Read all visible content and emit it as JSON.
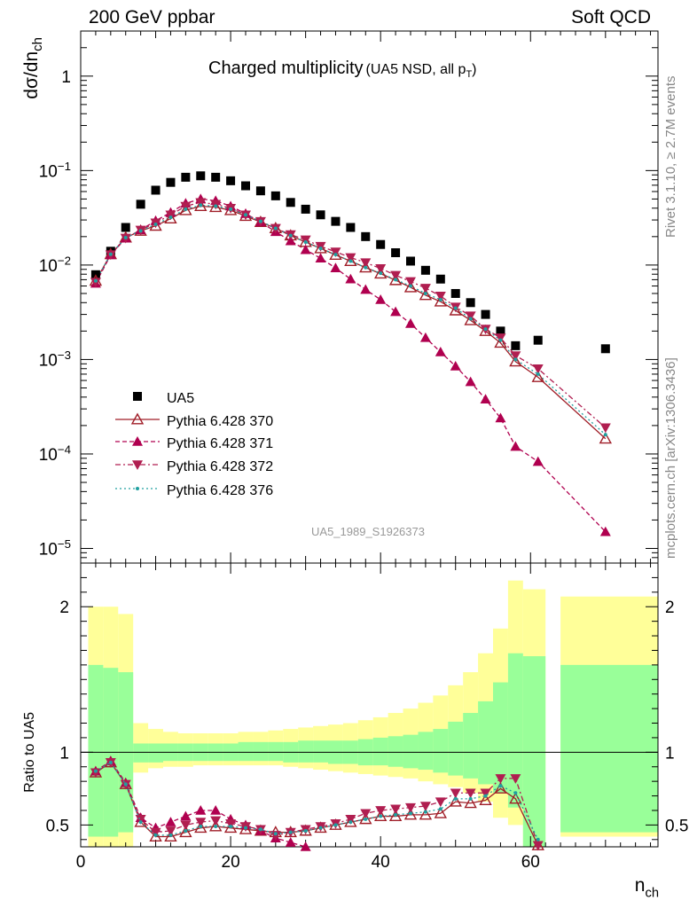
{
  "header": {
    "left": "200 GeV ppbar",
    "right": "Soft QCD"
  },
  "side": {
    "rivet": "Rivet 3.1.10, ≥ 2.7M events",
    "mcplots": "mcplots.cern.ch [arXiv:1306.3436]"
  },
  "chart_data": [
    {
      "type": "scatter",
      "title": "Charged multiplicity",
      "subtitle": "(UA5 NSD, all p",
      "subtitle_sub": "T",
      "subtitle_end": ")",
      "ylabel_main": "dσ/dn",
      "ylabel_sub": "ch",
      "yscale": "log",
      "ylim": [
        7e-06,
        3
      ],
      "xlim": [
        0,
        77
      ],
      "yticks": [
        {
          "v": 1,
          "label": "1",
          "exp": ""
        },
        {
          "v": 0.1,
          "label": "10",
          "exp": "−1"
        },
        {
          "v": 0.01,
          "label": "10",
          "exp": "−2"
        },
        {
          "v": 0.001,
          "label": "10",
          "exp": "−3"
        },
        {
          "v": 0.0001,
          "label": "10",
          "exp": "−4"
        },
        {
          "v": 1e-05,
          "label": "10",
          "exp": "−5"
        }
      ],
      "watermark": "UA5_1989_S1926373",
      "legend_position": "middle-left",
      "series": [
        {
          "name": "UA5",
          "color": "#000000",
          "marker": "square",
          "x": [
            2,
            4,
            6,
            8,
            10,
            12,
            14,
            16,
            18,
            20,
            22,
            24,
            26,
            28,
            30,
            32,
            34,
            36,
            38,
            40,
            42,
            44,
            46,
            48,
            50,
            52,
            54,
            56,
            58,
            61,
            70
          ],
          "y": [
            0.0079,
            0.014,
            0.025,
            0.044,
            0.062,
            0.075,
            0.085,
            0.088,
            0.085,
            0.078,
            0.069,
            0.061,
            0.054,
            0.046,
            0.039,
            0.034,
            0.029,
            0.025,
            0.02,
            0.0165,
            0.0135,
            0.011,
            0.0088,
            0.0071,
            0.005,
            0.004,
            0.003,
            0.002,
            0.0014,
            0.0016,
            0.0013
          ]
        },
        {
          "name": "Pythia 6.428 370",
          "color": "#a01e28",
          "marker": "triangle-up-open",
          "dash": "",
          "x": [
            2,
            4,
            6,
            8,
            10,
            12,
            14,
            16,
            18,
            20,
            22,
            24,
            26,
            28,
            30,
            32,
            34,
            36,
            38,
            40,
            42,
            44,
            46,
            48,
            50,
            52,
            54,
            56,
            58,
            61,
            70
          ],
          "y": [
            0.0068,
            0.013,
            0.0195,
            0.023,
            0.026,
            0.031,
            0.038,
            0.042,
            0.041,
            0.038,
            0.033,
            0.0285,
            0.0245,
            0.0205,
            0.0175,
            0.015,
            0.0128,
            0.011,
            0.0094,
            0.0081,
            0.0069,
            0.0058,
            0.0048,
            0.0041,
            0.0033,
            0.0026,
            0.002,
            0.0015,
            0.00095,
            0.00065,
            0.000145
          ]
        },
        {
          "name": "Pythia 6.428 371",
          "color": "#b0004f",
          "marker": "triangle-up",
          "dash": "5,3",
          "x": [
            2,
            4,
            6,
            8,
            10,
            12,
            14,
            16,
            18,
            20,
            22,
            24,
            26,
            28,
            30,
            32,
            34,
            36,
            38,
            40,
            42,
            44,
            46,
            48,
            50,
            52,
            54,
            56,
            58,
            61,
            70
          ],
          "y": [
            0.0064,
            0.0128,
            0.0192,
            0.0235,
            0.0295,
            0.036,
            0.045,
            0.05,
            0.048,
            0.042,
            0.035,
            0.0285,
            0.0225,
            0.018,
            0.0145,
            0.0118,
            0.0093,
            0.0071,
            0.0055,
            0.0043,
            0.0032,
            0.0024,
            0.0017,
            0.0012,
            0.00085,
            0.00058,
            0.00038,
            0.00024,
            0.00012,
            8.3e-05,
            1.5e-05
          ]
        },
        {
          "name": "Pythia 6.428 372",
          "color": "#b01e50",
          "marker": "triangle-down",
          "dash": "6,3,2,3",
          "x": [
            2,
            4,
            6,
            8,
            10,
            12,
            14,
            16,
            18,
            20,
            22,
            24,
            26,
            28,
            30,
            32,
            34,
            36,
            38,
            40,
            42,
            44,
            46,
            48,
            50,
            52,
            54,
            56,
            58,
            61,
            70
          ],
          "y": [
            0.0066,
            0.0129,
            0.0193,
            0.0235,
            0.028,
            0.034,
            0.042,
            0.046,
            0.044,
            0.04,
            0.034,
            0.029,
            0.0245,
            0.021,
            0.0185,
            0.0158,
            0.0138,
            0.012,
            0.0106,
            0.0092,
            0.0078,
            0.0067,
            0.0057,
            0.0047,
            0.0036,
            0.0029,
            0.0021,
            0.0017,
            0.0011,
            0.0008,
            0.00019
          ]
        },
        {
          "name": "Pythia 6.428 376",
          "color": "#20a0a0",
          "marker": "dot",
          "dash": "2,3",
          "x": [
            2,
            4,
            6,
            8,
            10,
            12,
            14,
            16,
            18,
            20,
            22,
            24,
            26,
            28,
            30,
            32,
            34,
            36,
            38,
            40,
            42,
            44,
            46,
            48,
            50,
            52,
            54,
            56,
            58,
            61,
            70
          ],
          "y": [
            0.0068,
            0.013,
            0.0195,
            0.023,
            0.027,
            0.032,
            0.039,
            0.043,
            0.042,
            0.039,
            0.034,
            0.029,
            0.0245,
            0.0205,
            0.0175,
            0.015,
            0.0129,
            0.011,
            0.0094,
            0.0082,
            0.007,
            0.006,
            0.005,
            0.0043,
            0.0035,
            0.0027,
            0.0021,
            0.0016,
            0.001,
            0.0007,
            0.00016
          ]
        }
      ]
    },
    {
      "type": "scatter",
      "ylabel": "Ratio to UA5",
      "xlabel_main": "n",
      "xlabel_sub": "ch",
      "xlim": [
        0,
        77
      ],
      "ylim": [
        0.35,
        2.3
      ],
      "xticks": [
        0,
        20,
        40,
        60
      ],
      "yticks": [
        0.5,
        1,
        2
      ],
      "yellow_band": {
        "xl": [
          1,
          3,
          5,
          7,
          9,
          11,
          13,
          15,
          17,
          19,
          21,
          23,
          25,
          27,
          29,
          31,
          33,
          35,
          37,
          39,
          41,
          43,
          45,
          47,
          49,
          51,
          53,
          55,
          57,
          59,
          64
        ],
        "xr": [
          3,
          5,
          7,
          9,
          11,
          13,
          15,
          17,
          19,
          21,
          23,
          25,
          27,
          29,
          31,
          33,
          35,
          37,
          39,
          41,
          43,
          45,
          47,
          49,
          51,
          53,
          55,
          57,
          59,
          62,
          77
        ],
        "lo": [
          0.35,
          0.35,
          0.35,
          0.86,
          0.89,
          0.9,
          0.9,
          0.91,
          0.91,
          0.91,
          0.91,
          0.91,
          0.91,
          0.9,
          0.89,
          0.88,
          0.87,
          0.86,
          0.85,
          0.84,
          0.83,
          0.82,
          0.8,
          0.78,
          0.76,
          0.72,
          0.66,
          0.55,
          0.5,
          0.35,
          0.42
        ],
        "hi": [
          2.0,
          2.0,
          1.95,
          1.2,
          1.16,
          1.14,
          1.13,
          1.13,
          1.13,
          1.13,
          1.14,
          1.14,
          1.15,
          1.16,
          1.17,
          1.18,
          1.19,
          1.2,
          1.22,
          1.24,
          1.27,
          1.3,
          1.34,
          1.39,
          1.46,
          1.55,
          1.68,
          1.85,
          2.18,
          2.12,
          2.07
        ]
      },
      "green_band": {
        "xl": [
          1,
          3,
          5,
          7,
          9,
          11,
          13,
          15,
          17,
          19,
          21,
          23,
          25,
          27,
          29,
          31,
          33,
          35,
          37,
          39,
          41,
          43,
          45,
          47,
          49,
          51,
          53,
          55,
          57,
          59,
          64
        ],
        "xr": [
          3,
          5,
          7,
          9,
          11,
          13,
          15,
          17,
          19,
          21,
          23,
          25,
          27,
          29,
          31,
          33,
          35,
          37,
          39,
          41,
          43,
          45,
          47,
          49,
          51,
          53,
          55,
          57,
          59,
          62,
          77
        ],
        "lo": [
          0.42,
          0.42,
          0.45,
          0.93,
          0.93,
          0.94,
          0.94,
          0.94,
          0.94,
          0.94,
          0.94,
          0.94,
          0.94,
          0.93,
          0.93,
          0.93,
          0.92,
          0.92,
          0.91,
          0.91,
          0.9,
          0.89,
          0.88,
          0.86,
          0.84,
          0.82,
          0.78,
          0.72,
          0.62,
          0.35,
          0.45
        ],
        "hi": [
          1.6,
          1.58,
          1.55,
          1.06,
          1.06,
          1.06,
          1.06,
          1.06,
          1.06,
          1.06,
          1.07,
          1.07,
          1.07,
          1.07,
          1.08,
          1.08,
          1.08,
          1.08,
          1.09,
          1.1,
          1.11,
          1.12,
          1.14,
          1.16,
          1.21,
          1.27,
          1.35,
          1.48,
          1.68,
          1.66,
          1.6
        ]
      },
      "series": [
        {
          "name": "Pythia 6.428 370",
          "color": "#a01e28",
          "marker": "triangle-up-open",
          "dash": "",
          "x": [
            2,
            4,
            6,
            8,
            10,
            12,
            14,
            16,
            18,
            20,
            22,
            24,
            26,
            28,
            30,
            32,
            34,
            36,
            38,
            40,
            42,
            44,
            46,
            48,
            50,
            52,
            54,
            56,
            58,
            61
          ],
          "y": [
            0.86,
            0.93,
            0.78,
            0.52,
            0.42,
            0.42,
            0.45,
            0.48,
            0.49,
            0.48,
            0.47,
            0.46,
            0.45,
            0.45,
            0.46,
            0.48,
            0.5,
            0.52,
            0.54,
            0.56,
            0.56,
            0.57,
            0.57,
            0.58,
            0.66,
            0.65,
            0.67,
            0.75,
            0.68,
            0.36
          ]
        },
        {
          "name": "Pythia 6.428 371",
          "color": "#b0004f",
          "marker": "triangle-up",
          "dash": "5,3",
          "x": [
            2,
            4,
            6,
            8,
            10,
            12,
            14,
            16,
            18,
            20,
            22,
            24,
            26,
            28,
            30
          ],
          "y": [
            0.87,
            0.94,
            0.79,
            0.55,
            0.48,
            0.52,
            0.56,
            0.6,
            0.6,
            0.54,
            0.5,
            0.46,
            0.41,
            0.38,
            0.35
          ]
        },
        {
          "name": "Pythia 6.428 372",
          "color": "#b01e50",
          "marker": "triangle-down",
          "dash": "6,3,2,3",
          "x": [
            2,
            4,
            6,
            8,
            10,
            12,
            14,
            16,
            18,
            20,
            22,
            24,
            26,
            28,
            30,
            32,
            34,
            36,
            38,
            40,
            42,
            44,
            46,
            48,
            50,
            52,
            54,
            56,
            58,
            61
          ],
          "y": [
            0.86,
            0.93,
            0.78,
            0.54,
            0.45,
            0.46,
            0.5,
            0.52,
            0.53,
            0.51,
            0.49,
            0.47,
            0.43,
            0.45,
            0.47,
            0.49,
            0.51,
            0.54,
            0.58,
            0.6,
            0.61,
            0.62,
            0.63,
            0.66,
            0.72,
            0.72,
            0.72,
            0.82,
            0.82,
            0.36
          ]
        },
        {
          "name": "Pythia 6.428 376",
          "color": "#20a0a0",
          "marker": "dot",
          "dash": "2,3",
          "x": [
            2,
            4,
            6,
            8,
            10,
            12,
            14,
            16,
            18,
            20,
            22,
            24,
            26,
            28,
            30,
            32,
            34,
            36,
            38,
            40,
            42,
            44,
            46,
            48,
            50,
            52,
            54,
            56,
            58,
            61
          ],
          "y": [
            0.87,
            0.93,
            0.78,
            0.52,
            0.43,
            0.43,
            0.46,
            0.49,
            0.49,
            0.49,
            0.48,
            0.47,
            0.44,
            0.45,
            0.46,
            0.48,
            0.5,
            0.52,
            0.54,
            0.56,
            0.57,
            0.58,
            0.59,
            0.61,
            0.68,
            0.68,
            0.7,
            0.77,
            0.72,
            0.4
          ]
        }
      ]
    }
  ]
}
